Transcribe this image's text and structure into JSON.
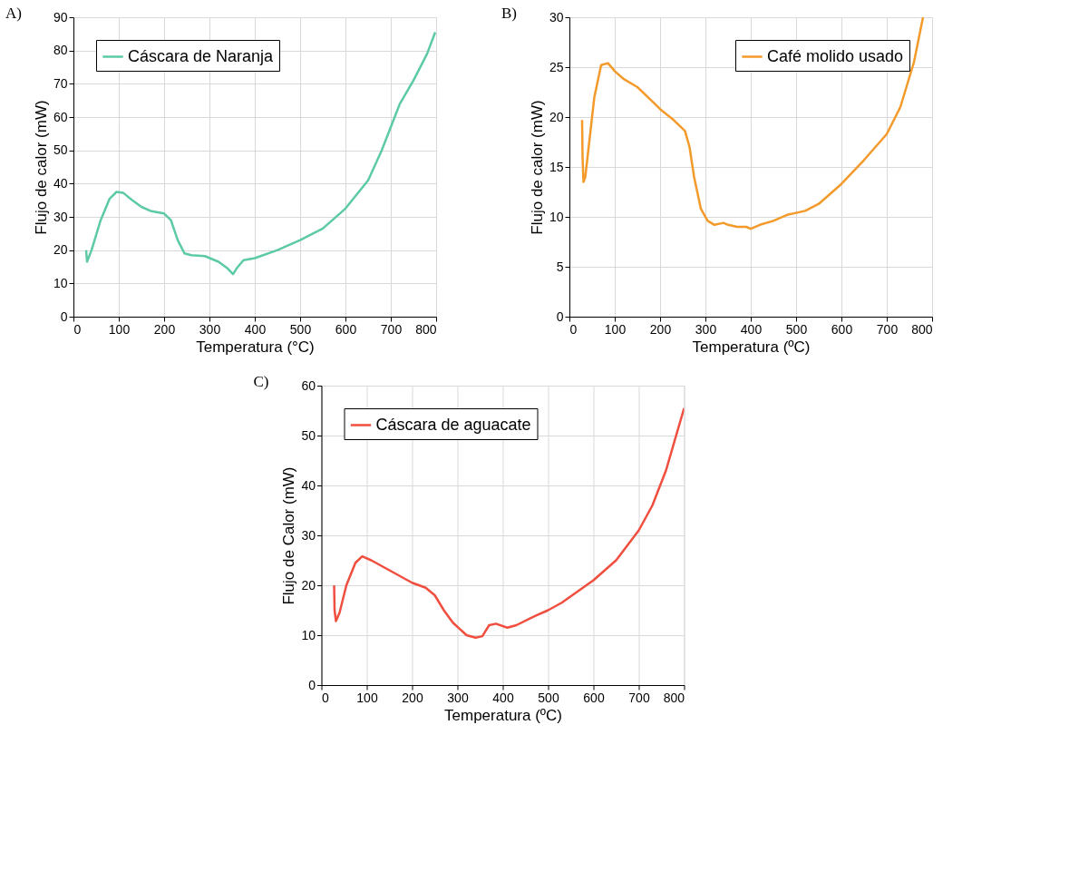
{
  "chart_data": [
    {
      "type": "line",
      "annotations": [
        "A)"
      ],
      "xlabel": "Temperatura (°C)",
      "ylabel": "Flujo de calor (mW)",
      "xlim": [
        0,
        800
      ],
      "ylim": [
        0,
        90
      ],
      "xticks": [
        0,
        100,
        200,
        300,
        400,
        500,
        600,
        700,
        800
      ],
      "yticks": [
        0,
        10,
        20,
        30,
        40,
        50,
        60,
        70,
        80,
        90
      ],
      "grid": true,
      "legend": "top left",
      "line_style": "solid",
      "series": [
        {
          "name": "Cáscara de Naranja",
          "color": "#5ccaa2",
          "x": [
            28,
            30,
            40,
            60,
            80,
            95,
            110,
            130,
            150,
            170,
            200,
            215,
            230,
            245,
            260,
            290,
            320,
            340,
            352,
            360,
            375,
            400,
            450,
            500,
            550,
            600,
            650,
            680,
            700,
            720,
            750,
            780,
            798
          ],
          "values": [
            20,
            16.5,
            20,
            29,
            35.5,
            37.5,
            37.2,
            35,
            33,
            31.8,
            31,
            29,
            23,
            19,
            18.5,
            18.2,
            16.5,
            14.5,
            12.8,
            14.5,
            17,
            17.6,
            20,
            23,
            26.5,
            32.5,
            41,
            50,
            57,
            64,
            71,
            79,
            85.5
          ]
        }
      ]
    },
    {
      "type": "line",
      "annotations": [
        "B)"
      ],
      "xlabel": "Temperatura (ºC)",
      "ylabel": "Flujo de calor (mW)",
      "xlim": [
        0,
        800
      ],
      "ylim": [
        0,
        30
      ],
      "xticks": [
        0,
        100,
        200,
        300,
        400,
        500,
        600,
        700,
        800
      ],
      "yticks": [
        0,
        5,
        10,
        15,
        20,
        25,
        30
      ],
      "grid": true,
      "legend": "top right",
      "line_style": "solid",
      "series": [
        {
          "name": "Café molido usado",
          "color": "#f39a2b",
          "x": [
            28,
            29,
            31,
            35,
            45,
            55,
            70,
            85,
            100,
            120,
            150,
            180,
            200,
            230,
            255,
            265,
            275,
            290,
            305,
            320,
            340,
            350,
            370,
            390,
            400,
            420,
            450,
            480,
            500,
            520,
            550,
            600,
            650,
            700,
            730,
            760,
            780
          ],
          "values": [
            19.7,
            16,
            13.5,
            14,
            18,
            22,
            25.2,
            25.4,
            24.6,
            23.8,
            23,
            21.7,
            20.8,
            19.7,
            18.6,
            17,
            14,
            10.8,
            9.6,
            9.2,
            9.4,
            9.2,
            9.0,
            9.0,
            8.8,
            9.2,
            9.6,
            10.2,
            10.4,
            10.6,
            11.3,
            13.3,
            15.7,
            18.3,
            21,
            25.5,
            30
          ]
        }
      ]
    },
    {
      "type": "line",
      "annotations": [
        "C)"
      ],
      "xlabel": "Temperatura (ºC)",
      "ylabel": "Flujo de Calor (mW)",
      "xlim": [
        0,
        800
      ],
      "ylim": [
        0,
        60
      ],
      "xticks": [
        0,
        100,
        200,
        300,
        400,
        500,
        600,
        700,
        800
      ],
      "yticks": [
        0,
        10,
        20,
        30,
        40,
        50,
        60
      ],
      "grid": true,
      "legend": "top left",
      "line_style": "solid",
      "series": [
        {
          "name": "Cáscara de aguacate",
          "color": "#f04e3e",
          "x": [
            28,
            29,
            32,
            40,
            55,
            75,
            90,
            110,
            150,
            200,
            230,
            250,
            270,
            290,
            320,
            340,
            355,
            370,
            385,
            410,
            430,
            470,
            500,
            530,
            600,
            650,
            700,
            730,
            760,
            800
          ],
          "values": [
            20,
            15,
            12.8,
            14.5,
            20,
            24.5,
            25.8,
            25,
            23,
            20.5,
            19.5,
            18,
            15,
            12.5,
            10,
            9.5,
            9.8,
            12,
            12.3,
            11.5,
            12,
            13.8,
            15,
            16.5,
            21,
            25,
            31,
            36,
            43,
            55.5
          ]
        }
      ]
    }
  ]
}
